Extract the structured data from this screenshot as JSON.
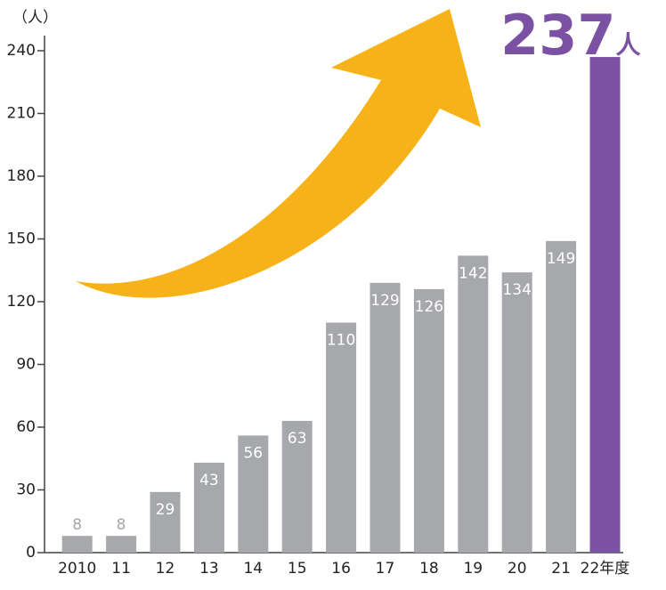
{
  "chart_data": {
    "type": "bar",
    "y_label": "（人）",
    "categories": [
      "2010",
      "11",
      "12",
      "13",
      "14",
      "15",
      "16",
      "17",
      "18",
      "19",
      "20",
      "21",
      "22年度"
    ],
    "values": [
      8,
      8,
      29,
      43,
      56,
      63,
      110,
      129,
      126,
      142,
      134,
      149,
      237
    ],
    "colors": [
      "#a7a8ac",
      "#a7a8ac",
      "#a7a8ac",
      "#a7a8ac",
      "#a7a8ac",
      "#a7a8ac",
      "#a7a8ac",
      "#a7a8ac",
      "#a7a8ac",
      "#a7a8ac",
      "#a7a8ac",
      "#a7a8ac",
      "#7b52a3"
    ],
    "highlight_unit": "人",
    "ylim": [
      0,
      240
    ],
    "yticks": [
      0,
      30,
      60,
      90,
      120,
      150,
      180,
      210,
      240
    ],
    "grid": false
  }
}
